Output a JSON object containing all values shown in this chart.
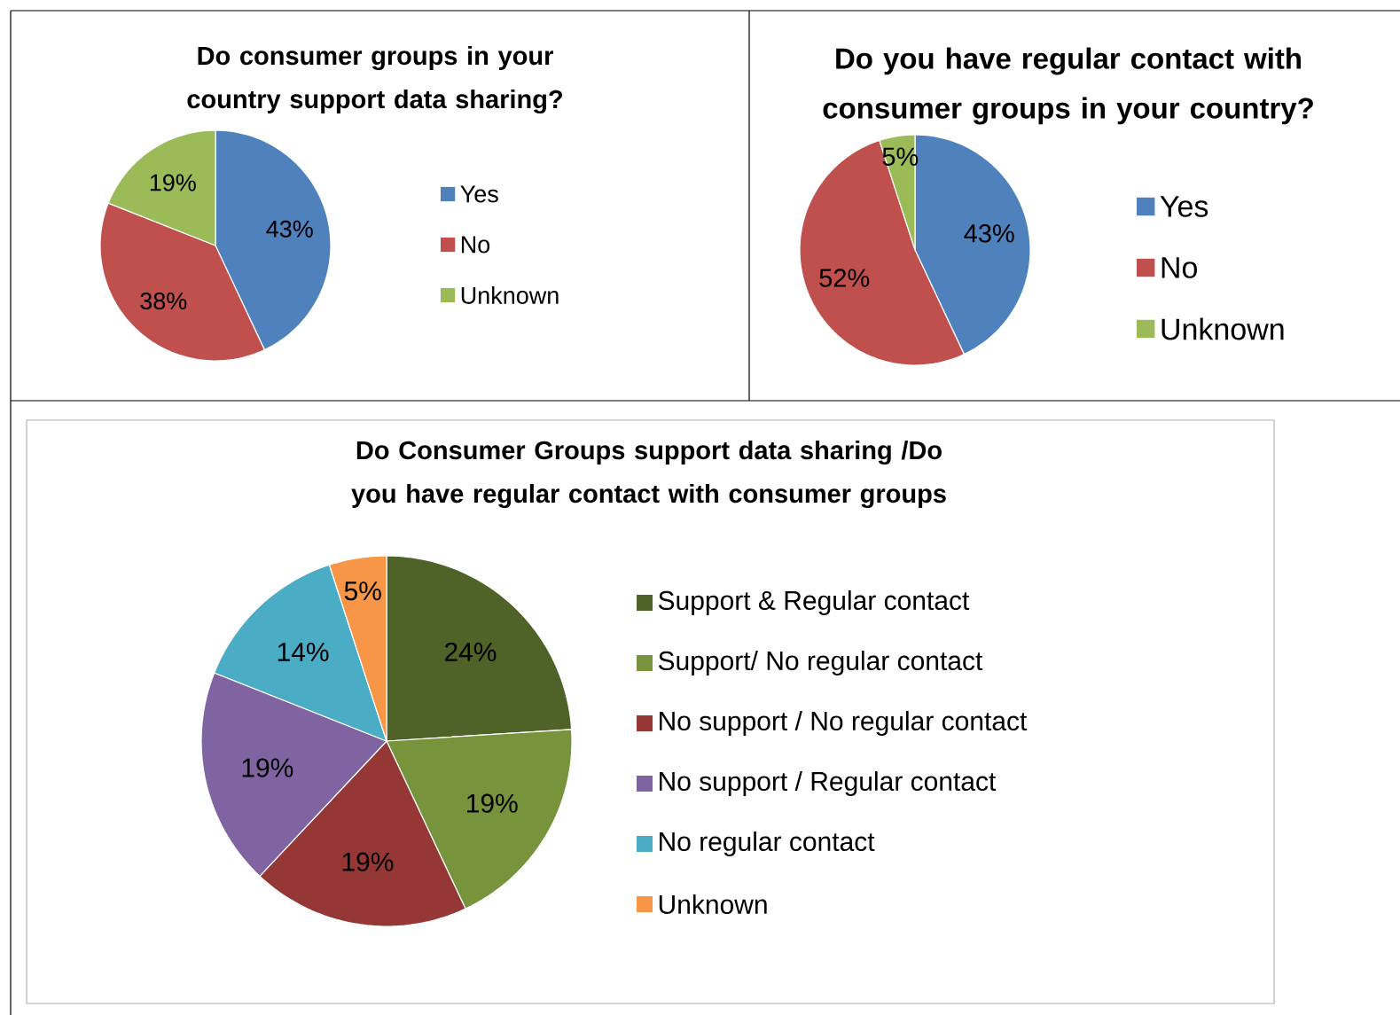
{
  "chart_data": [
    {
      "type": "pie",
      "title": "Do consumer groups in your country support data sharing?",
      "categories": [
        "Yes",
        "No",
        "Unknown"
      ],
      "values": [
        43,
        38,
        19
      ],
      "value_labels": [
        "43%",
        "38%",
        "19%"
      ],
      "colors": [
        "#4f81bd",
        "#c0504d",
        "#9bbb59"
      ],
      "legend": "right"
    },
    {
      "type": "pie",
      "title": "Do you have regular contact with consumer groups in your country?",
      "categories": [
        "Yes",
        "No",
        "Unknown"
      ],
      "values": [
        43,
        52,
        5
      ],
      "value_labels": [
        "43%",
        "52%",
        "5%"
      ],
      "colors": [
        "#4f81bd",
        "#c0504d",
        "#9bbb59"
      ],
      "legend": "right"
    },
    {
      "type": "pie",
      "title": "Do Consumer Groups support data sharing /Do you have regular contact with consumer groups",
      "categories": [
        "Support & Regular contact",
        "Support/ No regular contact",
        "No support / No regular contact",
        "No support / Regular contact",
        "No regular contact",
        "Unknown"
      ],
      "values": [
        24,
        19,
        19,
        19,
        14,
        5
      ],
      "value_labels": [
        "24%",
        "19%",
        "19%",
        "19%",
        "14%",
        "5%"
      ],
      "colors": [
        "#4f6228",
        "#77933c",
        "#953735",
        "#8064a2",
        "#4bacc6",
        "#f79646"
      ],
      "legend": "right"
    }
  ]
}
